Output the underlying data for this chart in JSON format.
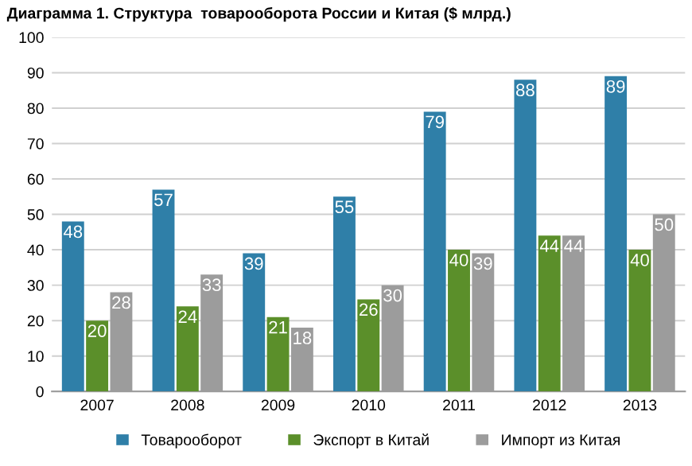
{
  "chart_data": {
    "type": "bar",
    "title": "Диаграмма 1. Структура  товарооборота России и Китая ($ млрд.)",
    "categories": [
      "2007",
      "2008",
      "2009",
      "2010",
      "2011",
      "2012",
      "2013"
    ],
    "series": [
      {
        "name": "Товарооборот",
        "color": "#2f7fa8",
        "values": [
          48,
          57,
          39,
          55,
          79,
          88,
          89
        ]
      },
      {
        "name": "Экспорт в Китай",
        "color": "#5b8f2a",
        "values": [
          20,
          24,
          21,
          26,
          40,
          44,
          40
        ]
      },
      {
        "name": "Импорт из Китая",
        "color": "#9c9c9c",
        "values": [
          28,
          33,
          18,
          30,
          39,
          44,
          50
        ]
      }
    ],
    "ylim": [
      0,
      100
    ],
    "yticks": [
      0,
      10,
      20,
      30,
      40,
      50,
      60,
      70,
      80,
      90,
      100
    ],
    "grid": "y",
    "legend": "bottom",
    "data_labels": true
  }
}
